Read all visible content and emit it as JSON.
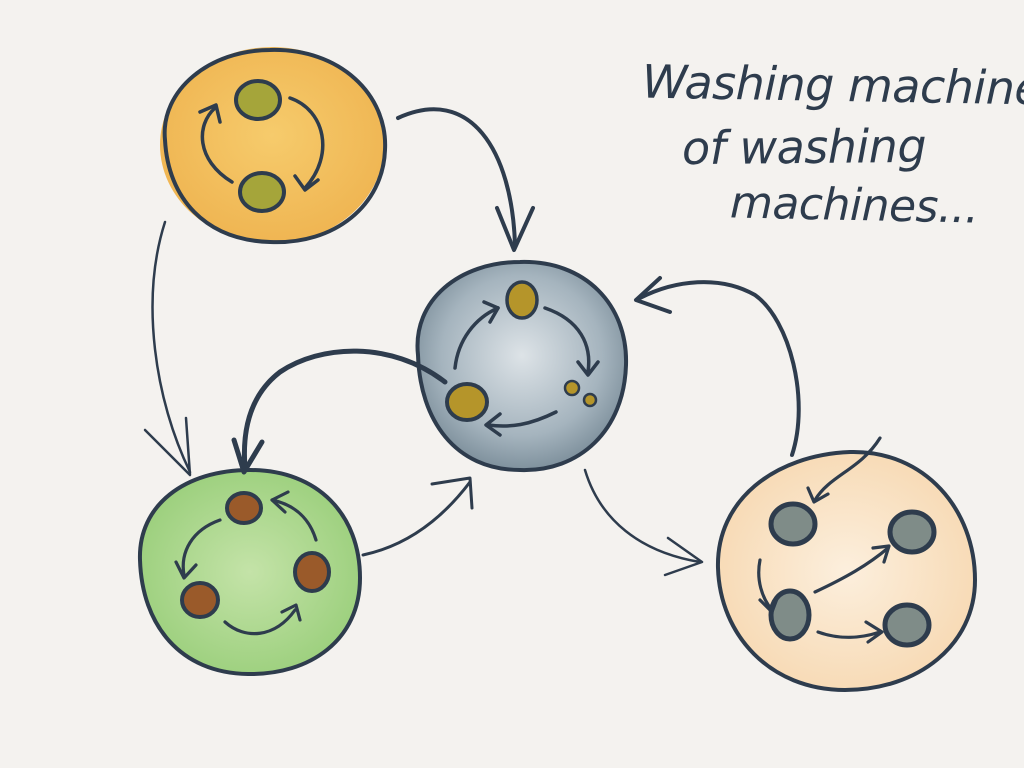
{
  "title": {
    "line1": "Washing machine",
    "line2": "of washing",
    "line3": "machines..."
  },
  "colors": {
    "background": "#f4f2ef",
    "ink": "#2e3c4d",
    "orange_fill": "#f2bd55",
    "slate_fill": "#9fb0bb",
    "green_fill": "#a8d68a",
    "peach_fill": "#f9dcb8",
    "olive_node": "#9aa43a",
    "gold_node": "#b5952a",
    "brown_node": "#9a5a2a",
    "grey_node": "#7f8c88"
  },
  "icons": {
    "arrowhead": "open-arrowhead-icon",
    "cycle": "cycle-arrows-icon"
  }
}
